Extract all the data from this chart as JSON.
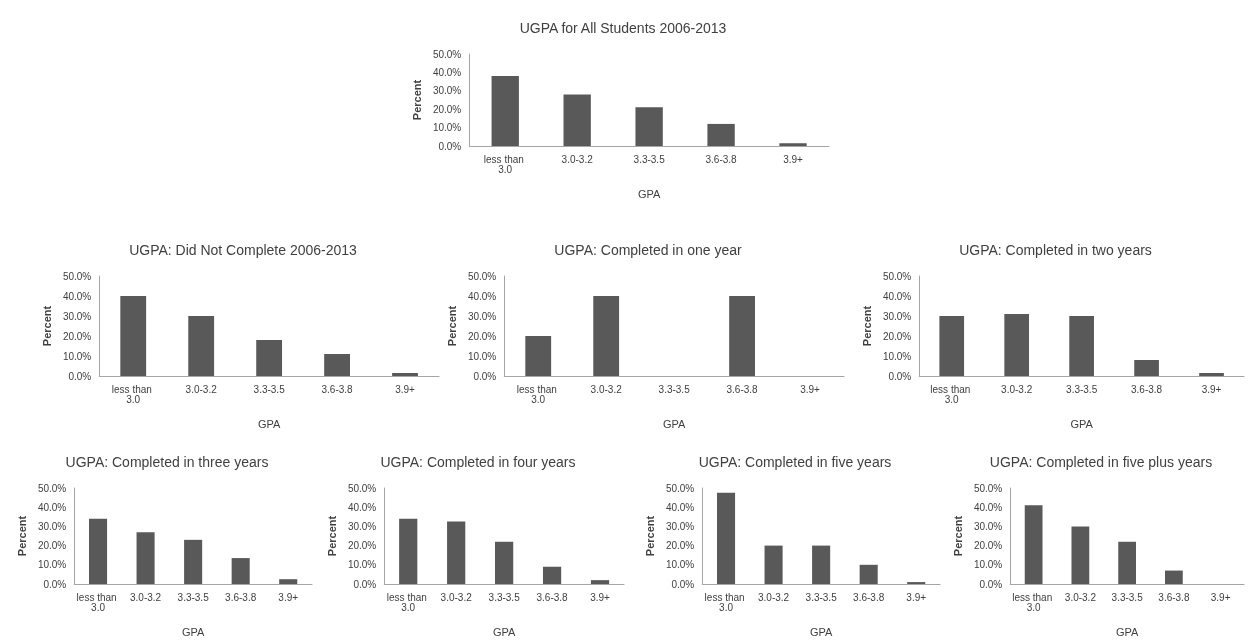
{
  "chart_data": [
    {
      "type": "bar",
      "title": "UGPA for All Students 2006-2013",
      "xlabel": "GPA",
      "ylabel": "Percent",
      "categories": [
        "less than 3.0",
        "3.0-3.2",
        "3.3-3.5",
        "3.6-3.8",
        "3.9+"
      ],
      "values": [
        38,
        28,
        21,
        12,
        1.5
      ],
      "color": "#595959",
      "ylim": [
        0,
        50
      ],
      "yticks": [
        {
          "value": 0,
          "label": "0.0%"
        },
        {
          "value": 10,
          "label": "10.0%"
        },
        {
          "value": 20,
          "label": "20.0%"
        },
        {
          "value": 30,
          "label": "30.0%"
        },
        {
          "value": 40,
          "label": "40.0%"
        },
        {
          "value": 50,
          "label": "50.0%"
        }
      ]
    },
    {
      "type": "bar",
      "title": "UGPA: Did Not Complete 2006-2013",
      "xlabel": "GPA",
      "ylabel": "Percent",
      "categories": [
        "less than 3.0",
        "3.0-3.2",
        "3.3-3.5",
        "3.6-3.8",
        "3.9+"
      ],
      "values": [
        40,
        30,
        18,
        11,
        1.5
      ],
      "color": "#595959",
      "ylim": [
        0,
        50
      ],
      "yticks": [
        {
          "value": 0,
          "label": "0.0%"
        },
        {
          "value": 10,
          "label": "10.0%"
        },
        {
          "value": 20,
          "label": "20.0%"
        },
        {
          "value": 30,
          "label": "30.0%"
        },
        {
          "value": 40,
          "label": "40.0%"
        },
        {
          "value": 50,
          "label": "50.0%"
        }
      ]
    },
    {
      "type": "bar",
      "title": "UGPA: Completed in one year",
      "xlabel": "GPA",
      "ylabel": "Percent",
      "categories": [
        "less than 3.0",
        "3.0-3.2",
        "3.3-3.5",
        "3.6-3.8",
        "3.9+"
      ],
      "values": [
        20,
        40,
        0,
        40,
        0
      ],
      "color": "#595959",
      "ylim": [
        0,
        50
      ],
      "yticks": [
        {
          "value": 0,
          "label": "0.0%"
        },
        {
          "value": 10,
          "label": "10.0%"
        },
        {
          "value": 20,
          "label": "20.0%"
        },
        {
          "value": 30,
          "label": "30.0%"
        },
        {
          "value": 40,
          "label": "40.0%"
        },
        {
          "value": 50,
          "label": "50.0%"
        }
      ]
    },
    {
      "type": "bar",
      "title": "UGPA: Completed in two years",
      "xlabel": "GPA",
      "ylabel": "Percent",
      "categories": [
        "less than 3.0",
        "3.0-3.2",
        "3.3-3.5",
        "3.6-3.8",
        "3.9+"
      ],
      "values": [
        30,
        31,
        30,
        8,
        1.5
      ],
      "color": "#595959",
      "ylim": [
        0,
        50
      ],
      "yticks": [
        {
          "value": 0,
          "label": "0.0%"
        },
        {
          "value": 10,
          "label": "10.0%"
        },
        {
          "value": 20,
          "label": "20.0%"
        },
        {
          "value": 30,
          "label": "30.0%"
        },
        {
          "value": 40,
          "label": "40.0%"
        },
        {
          "value": 50,
          "label": "50.0%"
        }
      ]
    },
    {
      "type": "bar",
      "title": "UGPA: Completed in three years",
      "xlabel": "GPA",
      "ylabel": "Percent",
      "categories": [
        "less than 3.0",
        "3.0-3.2",
        "3.3-3.5",
        "3.6-3.8",
        "3.9+"
      ],
      "values": [
        34,
        27,
        23,
        13.5,
        2.5
      ],
      "color": "#595959",
      "ylim": [
        0,
        50
      ],
      "yticks": [
        {
          "value": 0,
          "label": "0.0%"
        },
        {
          "value": 10,
          "label": "10.0%"
        },
        {
          "value": 20,
          "label": "20.0%"
        },
        {
          "value": 30,
          "label": "30.0%"
        },
        {
          "value": 40,
          "label": "40.0%"
        },
        {
          "value": 50,
          "label": "50.0%"
        }
      ]
    },
    {
      "type": "bar",
      "title": "UGPA: Completed in four years",
      "xlabel": "GPA",
      "ylabel": "Percent",
      "categories": [
        "less than 3.0",
        "3.0-3.2",
        "3.3-3.5",
        "3.6-3.8",
        "3.9+"
      ],
      "values": [
        34,
        32.5,
        22,
        9,
        2
      ],
      "color": "#595959",
      "ylim": [
        0,
        50
      ],
      "yticks": [
        {
          "value": 0,
          "label": "0.0%"
        },
        {
          "value": 10,
          "label": "10.0%"
        },
        {
          "value": 20,
          "label": "20.0%"
        },
        {
          "value": 30,
          "label": "30.0%"
        },
        {
          "value": 40,
          "label": "40.0%"
        },
        {
          "value": 50,
          "label": "50.0%"
        }
      ]
    },
    {
      "type": "bar",
      "title": "UGPA: Completed in five years",
      "xlabel": "GPA",
      "ylabel": "Percent",
      "categories": [
        "less than 3.0",
        "3.0-3.2",
        "3.3-3.5",
        "3.6-3.8",
        "3.9+"
      ],
      "values": [
        47.5,
        20,
        20,
        10,
        1
      ],
      "color": "#595959",
      "ylim": [
        0,
        50
      ],
      "yticks": [
        {
          "value": 0,
          "label": "0.0%"
        },
        {
          "value": 10,
          "label": "10.0%"
        },
        {
          "value": 20,
          "label": "20.0%"
        },
        {
          "value": 30,
          "label": "30.0%"
        },
        {
          "value": 40,
          "label": "40.0%"
        },
        {
          "value": 50,
          "label": "50.0%"
        }
      ]
    },
    {
      "type": "bar",
      "title": "UGPA: Completed in five plus years",
      "xlabel": "GPA",
      "ylabel": "Percent",
      "categories": [
        "less than 3.0",
        "3.0-3.2",
        "3.3-3.5",
        "3.6-3.8",
        "3.9+"
      ],
      "values": [
        41,
        30,
        22,
        7,
        0
      ],
      "color": "#595959",
      "ylim": [
        0,
        50
      ],
      "yticks": [
        {
          "value": 0,
          "label": "0.0%"
        },
        {
          "value": 10,
          "label": "10.0%"
        },
        {
          "value": 20,
          "label": "20.0%"
        },
        {
          "value": 30,
          "label": "30.0%"
        },
        {
          "value": 40,
          "label": "40.0%"
        },
        {
          "value": 50,
          "label": "50.0%"
        }
      ]
    }
  ]
}
